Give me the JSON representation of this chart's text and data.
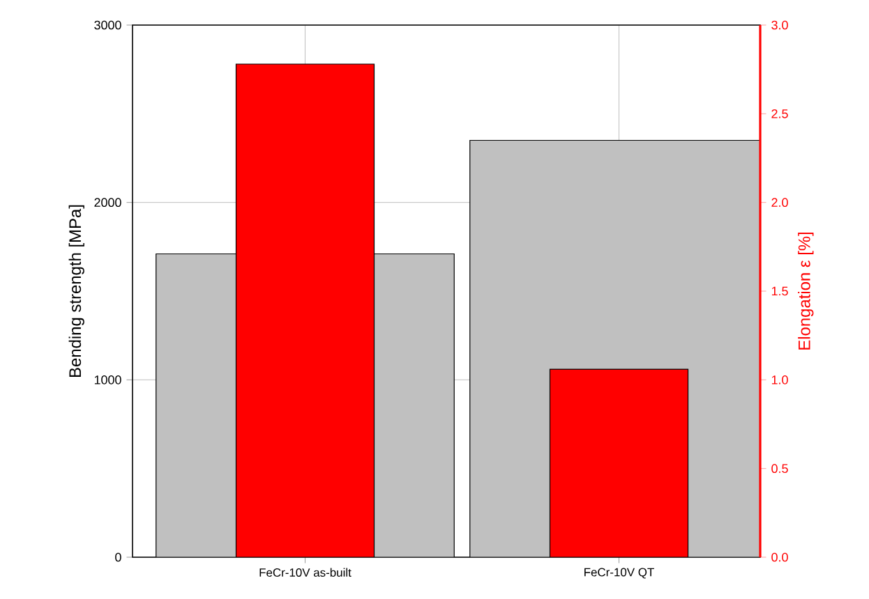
{
  "chart_data": {
    "type": "bar",
    "categories": [
      "FeCr-10V as-built",
      "FeCr-10V QT"
    ],
    "series": [
      {
        "color": "#c0c0c0",
        "values": [
          1710,
          2350
        ]
      },
      {
        "color": "#ff0000",
        "values": [
          2.78,
          1.06
        ],
        "axis": "y2"
      }
    ],
    "ylabel": "Bending strength [MPa]",
    "y2label": "Elongation ε [%]",
    "ylim": [
      0,
      3000
    ],
    "yticks": [
      0,
      1000,
      2000,
      3000
    ],
    "y2lim": [
      0,
      3.0
    ],
    "y2ticks": [
      {
        "value": 0,
        "label": "0.0"
      },
      {
        "value": 0.5,
        "label": "0.5"
      },
      {
        "value": 1.0,
        "label": "1.0"
      },
      {
        "value": 1.5,
        "label": "1.5"
      },
      {
        "value": 2.0,
        "label": "2.0"
      },
      {
        "value": 2.5,
        "label": "2.5"
      },
      {
        "value": 3.0,
        "label": "3.0"
      }
    ],
    "grid": true
  }
}
